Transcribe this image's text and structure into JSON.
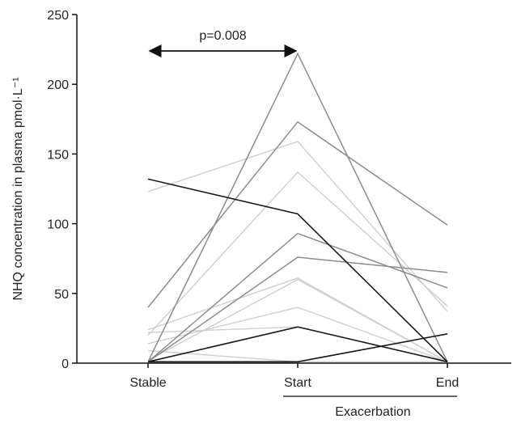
{
  "chart_data": {
    "type": "line",
    "ylabel": "NHQ concentration in plasma pmol·L⁻¹",
    "ylim": [
      0,
      250
    ],
    "yticks": [
      "0",
      "50",
      "100",
      "150",
      "200",
      "250"
    ],
    "categories": [
      "Stable",
      "Start",
      "End"
    ],
    "group_label": "Exacerbation",
    "annotation": "p=0.008",
    "grid": false,
    "series_colors": {
      "dark": "#1a1a1a",
      "medium": "#8c8c8c",
      "light": "#cfcfcf"
    },
    "series": [
      {
        "shade": "light",
        "values": [
          123,
          159,
          37
        ]
      },
      {
        "shade": "light",
        "values": [
          20,
          137,
          41
        ]
      },
      {
        "shade": "light",
        "values": [
          24,
          61,
          1
        ]
      },
      {
        "shade": "light",
        "values": [
          14,
          40,
          1
        ]
      },
      {
        "shade": "light",
        "values": [
          9,
          1,
          1
        ]
      },
      {
        "shade": "light",
        "values": [
          22,
          26,
          1
        ]
      },
      {
        "shade": "light",
        "values": [
          2,
          60,
          1
        ]
      },
      {
        "shade": "medium",
        "values": [
          1,
          222,
          1
        ]
      },
      {
        "shade": "medium",
        "values": [
          40,
          173,
          99
        ]
      },
      {
        "shade": "medium",
        "values": [
          1,
          93,
          54
        ]
      },
      {
        "shade": "medium",
        "values": [
          1,
          76,
          65
        ]
      },
      {
        "shade": "dark",
        "values": [
          132,
          107,
          1
        ]
      },
      {
        "shade": "dark",
        "values": [
          1,
          26,
          1
        ]
      },
      {
        "shade": "dark",
        "values": [
          1,
          1,
          21
        ]
      }
    ]
  }
}
